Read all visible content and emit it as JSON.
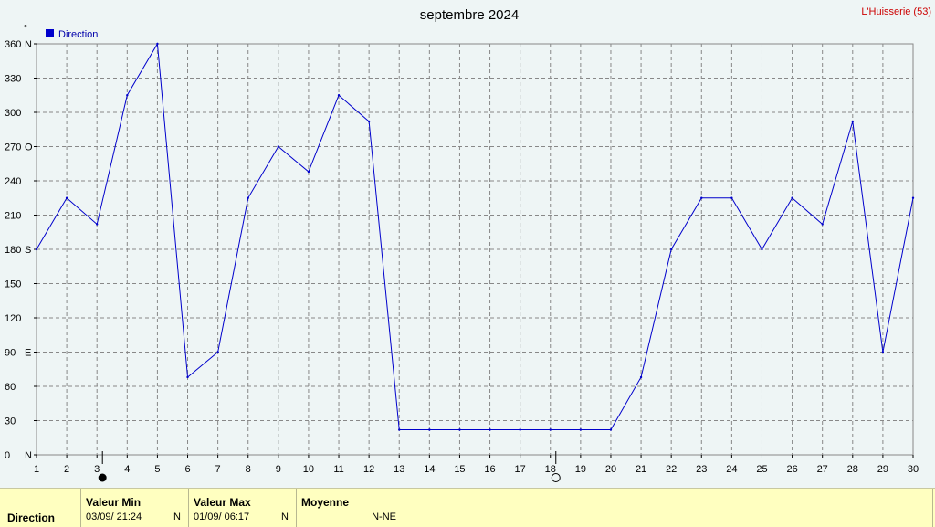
{
  "chart_data": {
    "type": "line",
    "title": "septembre 2024",
    "location": "L'Huisserie (53)",
    "unit_marker": "°",
    "legend": [
      {
        "name": "Direction",
        "color": "#0000cc"
      }
    ],
    "legend_placement": "top-left",
    "grid": true,
    "x": [
      1,
      2,
      3,
      4,
      5,
      6,
      7,
      8,
      9,
      10,
      11,
      12,
      13,
      14,
      15,
      16,
      17,
      18,
      19,
      20,
      21,
      22,
      23,
      24,
      25,
      26,
      27,
      28,
      29,
      30
    ],
    "xlim": [
      1,
      30
    ],
    "ylim": [
      0,
      360
    ],
    "y_ticks": [
      {
        "value": 0,
        "label": "0",
        "cardinal": "N"
      },
      {
        "value": 30,
        "label": "30",
        "cardinal": ""
      },
      {
        "value": 60,
        "label": "60",
        "cardinal": ""
      },
      {
        "value": 90,
        "label": "90",
        "cardinal": "E"
      },
      {
        "value": 120,
        "label": "120",
        "cardinal": ""
      },
      {
        "value": 150,
        "label": "150",
        "cardinal": ""
      },
      {
        "value": 180,
        "label": "180",
        "cardinal": "S"
      },
      {
        "value": 210,
        "label": "210",
        "cardinal": ""
      },
      {
        "value": 240,
        "label": "240",
        "cardinal": ""
      },
      {
        "value": 270,
        "label": "270",
        "cardinal": "O"
      },
      {
        "value": 300,
        "label": "300",
        "cardinal": ""
      },
      {
        "value": 330,
        "label": "330",
        "cardinal": ""
      },
      {
        "value": 360,
        "label": "360",
        "cardinal": "N"
      }
    ],
    "series": [
      {
        "name": "Direction",
        "color": "#0000cc",
        "values": [
          180,
          225,
          202,
          315,
          360,
          68,
          90,
          225,
          270,
          248,
          315,
          292,
          22,
          22,
          22,
          22,
          22,
          22,
          22,
          22,
          68,
          180,
          225,
          225,
          180,
          225,
          202,
          292,
          90,
          225
        ]
      }
    ],
    "moon_phases": [
      {
        "day": 3,
        "phase": "new-moon"
      },
      {
        "day": 18,
        "phase": "full-moon"
      }
    ]
  },
  "stats": {
    "row_label": "Direction",
    "min": {
      "header": "Valeur Min",
      "date": "03/09/  21:24",
      "value": "N"
    },
    "max": {
      "header": "Valeur Max",
      "date": "01/09/  06:17",
      "value": "N"
    },
    "avg": {
      "header": "Moyenne",
      "value": "N-NE"
    }
  }
}
